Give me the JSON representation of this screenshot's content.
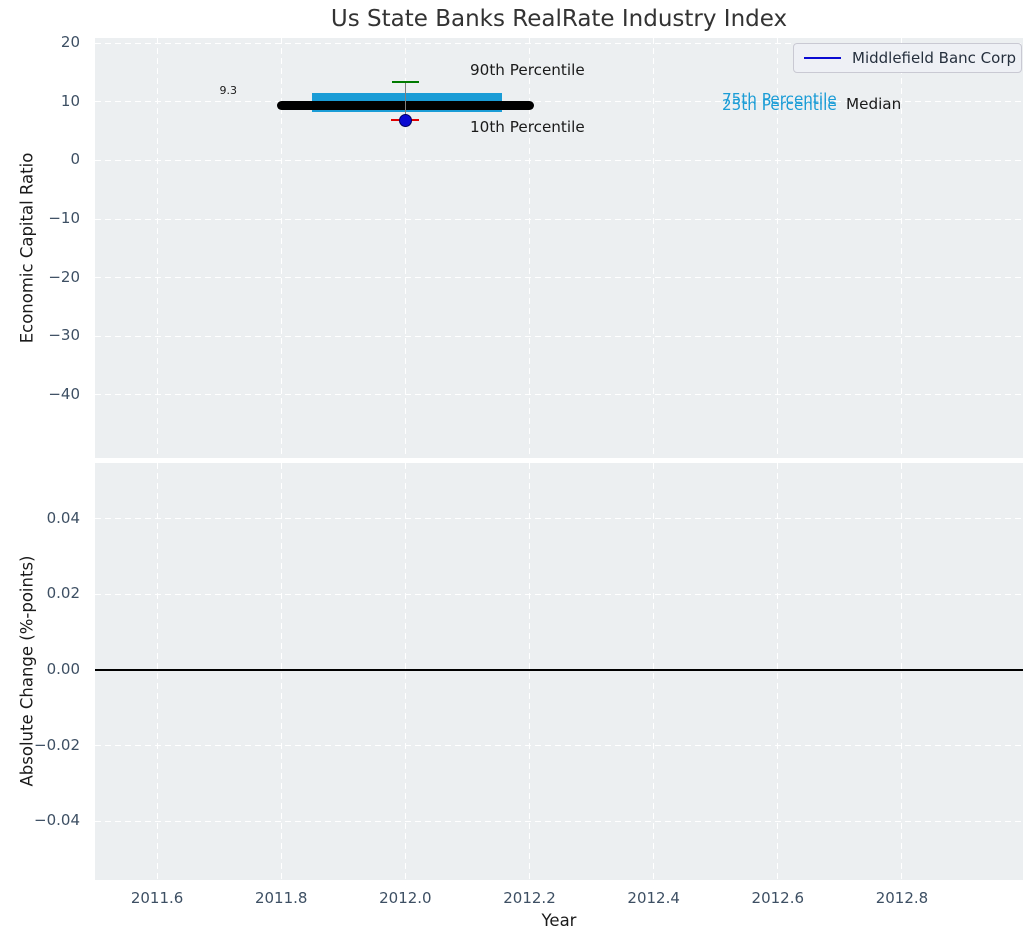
{
  "title": "Us State Banks RealRate Industry Index",
  "legend": {
    "items": [
      {
        "label": "Middlefield Banc Corp",
        "color": "#0a0ad2"
      }
    ]
  },
  "annotations": {
    "median_value": "9.3",
    "p90_label": "90th Percentile",
    "p10_label": "10th Percentile",
    "p75_label": "75th Percentile",
    "p25_label": "25th Percentile",
    "median_label": "Median"
  },
  "colors": {
    "plot_bg": "#eceff1",
    "grid": "#ffffff",
    "band": "#1a9cd6",
    "median_line": "#000000",
    "p90_cap": "#007a00",
    "p10_cap": "#e10000",
    "company_marker": "#0a0ad2",
    "whisker": "#7f7f7f",
    "tick_label": "#3d4f63",
    "axis_label": "#1a1a1a",
    "title": "#333333",
    "zero_line": "#000000"
  },
  "chart_data": [
    {
      "type": "box",
      "title": "Us State Banks RealRate Industry Index",
      "xlabel": "Year",
      "ylabel": "Economic Capital Ratio",
      "grid": true,
      "legend_position": "upper right",
      "xlim": [
        2011.5,
        2012.995
      ],
      "ylim": [
        -50.8,
        20.9
      ],
      "x_ticks": [
        2011.6,
        2011.8,
        2012.0,
        2012.2,
        2012.4,
        2012.6,
        2012.8
      ],
      "x_tick_labels": [
        "2011.6",
        "2011.8",
        "2012.0",
        "2012.2",
        "2012.4",
        "2012.6",
        "2012.8"
      ],
      "y_ticks": [
        20,
        10,
        0,
        -10,
        -20,
        -30,
        -40
      ],
      "y_tick_labels": [
        "20",
        "10",
        "0",
        "−10",
        "−20",
        "−30",
        "−40"
      ],
      "year": 2012.0,
      "industry_percentiles": {
        "p90": 13.4,
        "p75": 11.5,
        "median": 9.3,
        "p25": 8.3,
        "p10": 6.9
      },
      "median_span_years": [
        2011.8,
        2012.2
      ],
      "iqr_band_span_years": [
        2011.85,
        2012.155
      ],
      "company_point": {
        "name": "Middlefield Banc Corp",
        "year": 2012.0,
        "value": 6.9
      }
    },
    {
      "type": "line",
      "xlabel": "Year",
      "ylabel": "Absolute Change (%-points)",
      "grid": true,
      "xlim": [
        2011.5,
        2012.995
      ],
      "ylim": [
        -0.0556,
        0.0548
      ],
      "x_ticks": [
        2011.6,
        2011.8,
        2012.0,
        2012.2,
        2012.4,
        2012.6,
        2012.8
      ],
      "x_tick_labels": [
        "2011.6",
        "2011.8",
        "2012.0",
        "2012.2",
        "2012.4",
        "2012.6",
        "2012.8"
      ],
      "y_ticks": [
        0.04,
        0.02,
        0.0,
        -0.02,
        -0.04
      ],
      "y_tick_labels": [
        "0.04",
        "0.02",
        "0.00",
        "−0.02",
        "−0.04"
      ],
      "zero_line_y": 0.0,
      "series": []
    }
  ]
}
